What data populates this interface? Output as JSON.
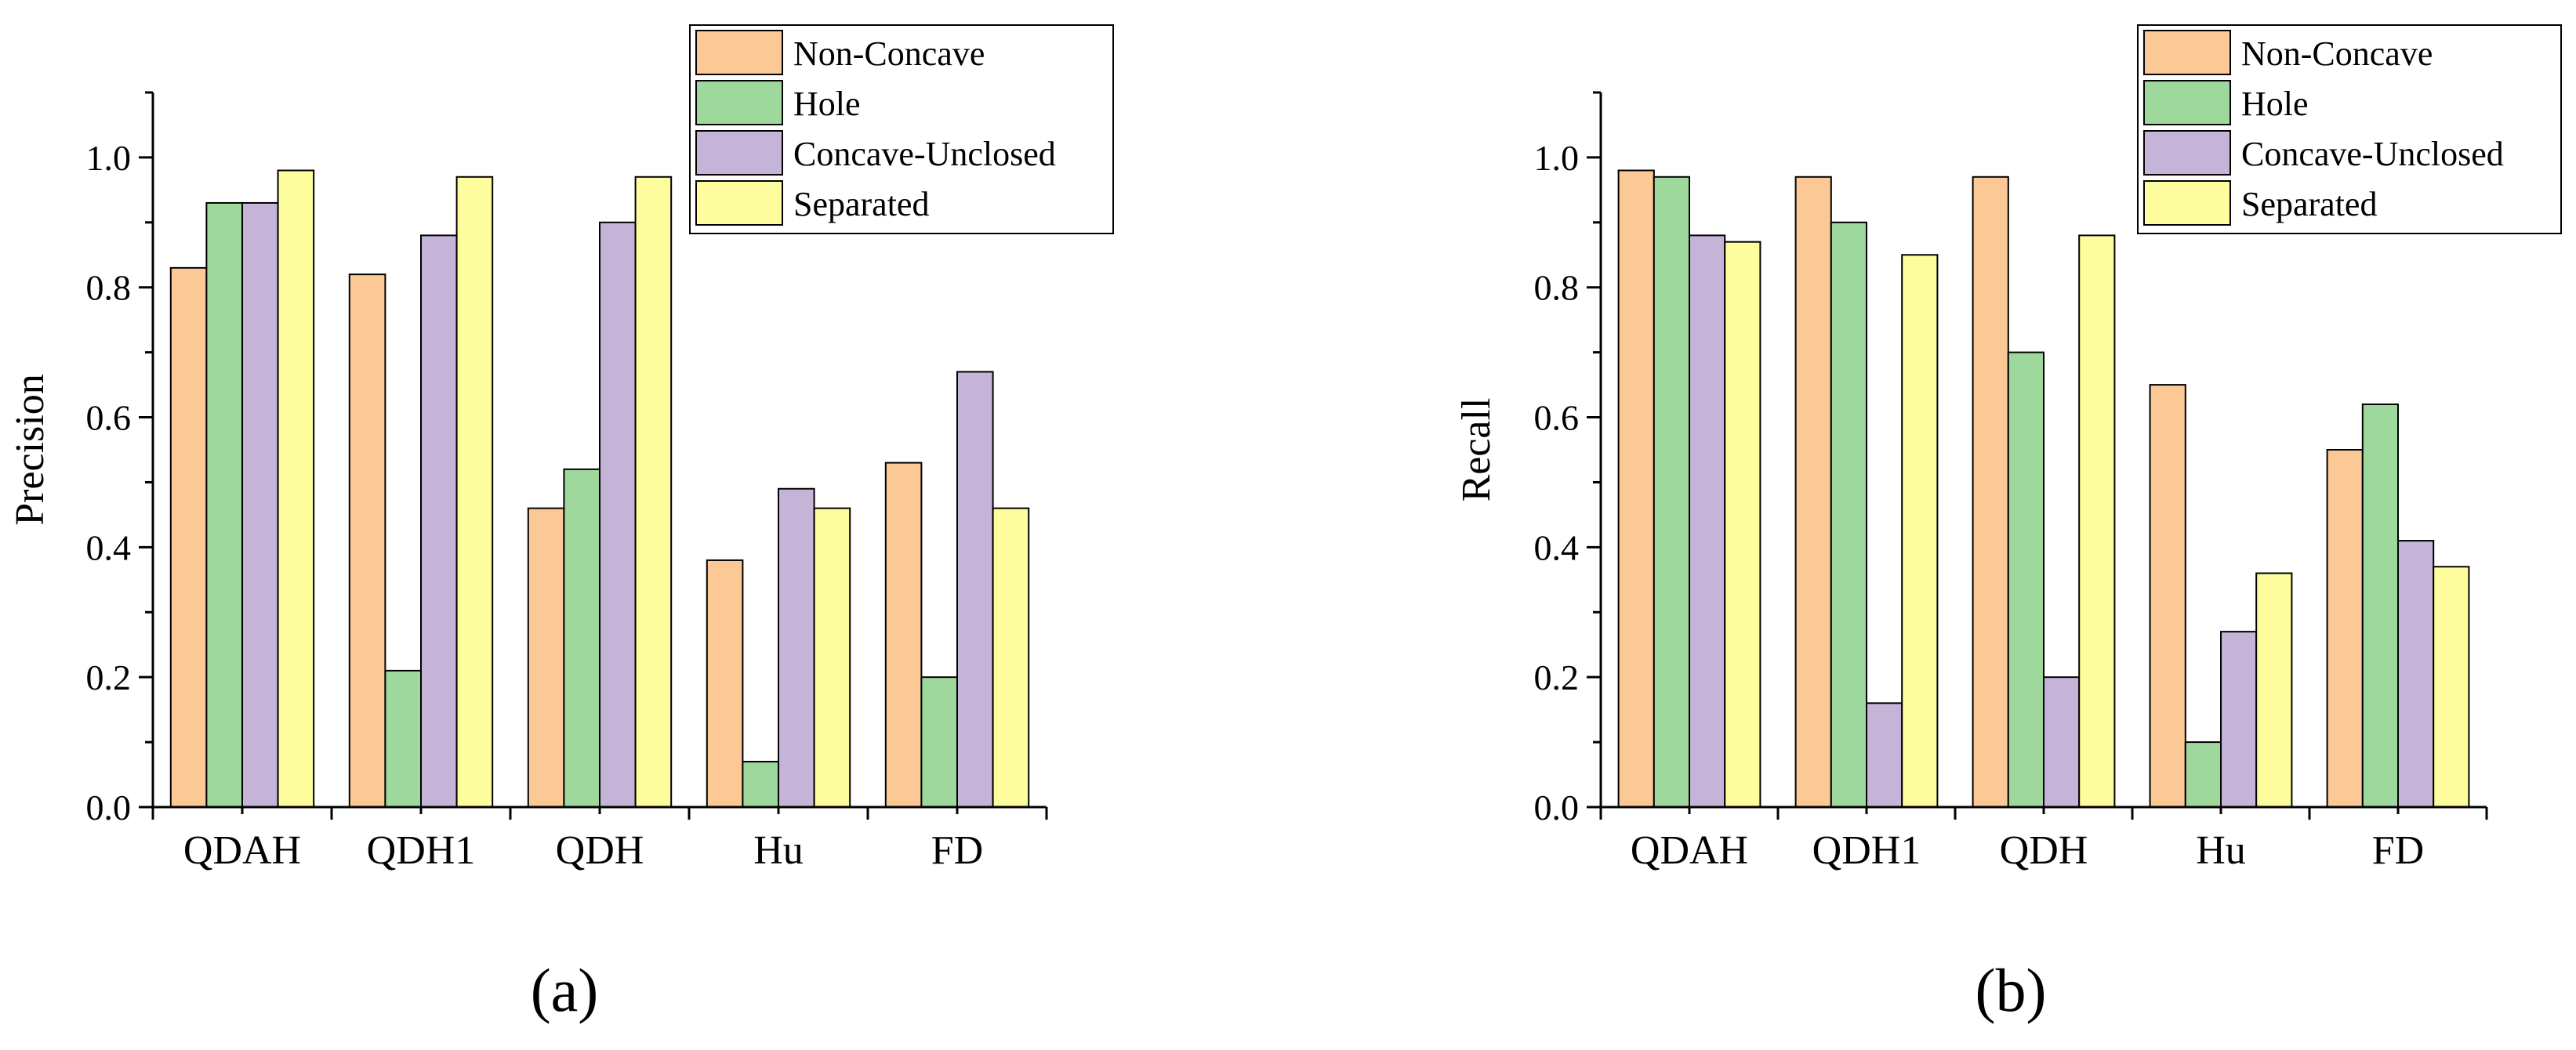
{
  "colors": {
    "Non-Concave": "#fcc996",
    "Hole": "#9fd89d",
    "Concave-Unclosed": "#c5b4d8",
    "Separated": "#fdfd9e"
  },
  "chart_data": [
    {
      "type": "bar",
      "panel_label": "(a)",
      "ylabel": "Precision",
      "xlabel": "",
      "ylim": [
        0,
        1.1
      ],
      "yticks": [
        "0.0",
        "0.2",
        "0.4",
        "0.6",
        "0.8",
        "1.0"
      ],
      "categories": [
        "QDAH",
        "QDH1",
        "QDH",
        "Hu",
        "FD"
      ],
      "legend_position": "top-right",
      "series": [
        {
          "name": "Non-Concave",
          "values": [
            0.83,
            0.82,
            0.46,
            0.38,
            0.53
          ]
        },
        {
          "name": "Hole",
          "values": [
            0.93,
            0.21,
            0.52,
            0.07,
            0.2
          ]
        },
        {
          "name": "Concave-Unclosed",
          "values": [
            0.93,
            0.88,
            0.9,
            0.49,
            0.67
          ]
        },
        {
          "name": "Separated",
          "values": [
            0.98,
            0.97,
            0.97,
            0.46,
            0.46
          ]
        }
      ]
    },
    {
      "type": "bar",
      "panel_label": "(b)",
      "ylabel": "Recall",
      "xlabel": "",
      "ylim": [
        0,
        1.1
      ],
      "yticks": [
        "0.0",
        "0.2",
        "0.4",
        "0.6",
        "0.8",
        "1.0"
      ],
      "categories": [
        "QDAH",
        "QDH1",
        "QDH",
        "Hu",
        "FD"
      ],
      "legend_position": "top-right",
      "series": [
        {
          "name": "Non-Concave",
          "values": [
            0.98,
            0.97,
            0.97,
            0.65,
            0.55
          ]
        },
        {
          "name": "Hole",
          "values": [
            0.97,
            0.9,
            0.7,
            0.1,
            0.62
          ]
        },
        {
          "name": "Concave-Unclosed",
          "values": [
            0.88,
            0.16,
            0.2,
            0.27,
            0.41
          ]
        },
        {
          "name": "Separated",
          "values": [
            0.87,
            0.85,
            0.88,
            0.36,
            0.37
          ]
        }
      ]
    }
  ]
}
